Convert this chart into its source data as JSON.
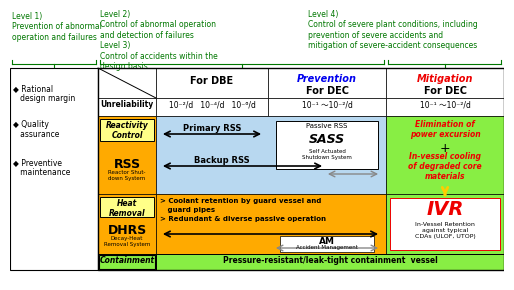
{
  "level1_text": "Level 1)\nPrevention of abnormal\noperation and failures",
  "level23_text": "Level 2)\nControl of abnormal operation\nand detection of failures\nLevel 3)\nControl of accidents within the\ndesign basis",
  "level4_text": "Level 4)\nControl of severe plant conditions, including\nprevention of severe accidents and\nmitigation of severe-accident consequences",
  "left_bullets": [
    "◆ Rational\n   design margin",
    "◆ Quality\n   assurance",
    "◆ Preventive\n   maintenance"
  ],
  "col_dbe": "For DBE",
  "col_prev_1": "Prevention",
  "col_prev_2": "For DEC",
  "col_mit_1": "Mitigation",
  "col_mit_2": "For DEC",
  "row_unreliability": "Unreliability",
  "val_dbe": "10⁻²/d   10⁻⁴/d   10⁻⁶/d",
  "val_prev": "10⁻¹ ～10⁻²/d",
  "val_mit": "10⁻¹ ～10⁻²/d",
  "reactivity_control": "Reactivity\nControl",
  "rss_label": "RSS",
  "rss_sub": "Reactor Shut-\ndown System",
  "primary_rss": "Primary RSS",
  "backup_rss": "Backup RSS",
  "passive_rss": "Passive RSS",
  "sass_label": "SASS",
  "sass_sub": "Self Actuated\nShutdown System",
  "heat_removal": "Heat\nRemoval",
  "dhrs_label": "DHRS",
  "dhrs_sub": "Decay-Heat\nRemoval System",
  "coolant_line1": "> Coolant retention by guard vessel and",
  "coolant_line2": "   guard pipes",
  "coolant_line3": "> Redundant & diverse passive operation",
  "am_label": "AM",
  "am_sub": "Accident Management",
  "containment": "Containment",
  "containment_text": "Pressure-resistant/leak-tight containment  vessel",
  "elim_line1": "Elimination of",
  "elim_line2": "power excursion",
  "invessel_line1": "In-vessel cooling",
  "invessel_line2": "of degraded core",
  "invessel_line3": "materials",
  "ivr_label": "IVR",
  "ivr_sub": "In-Vessel Retention\nagainst typical\nCDAs (ULOF, UTOP)",
  "color_green_dark": "#007700",
  "color_green_bright": "#33CC00",
  "color_blue_light": "#B8D8F0",
  "color_yellow": "#FFFF88",
  "color_orange": "#FFAA00",
  "color_green_cell": "#88EE44",
  "color_white": "#FFFFFF",
  "color_black": "#000000",
  "color_red": "#EE0000",
  "color_blue_text": "#0000EE",
  "color_gray": "#888888"
}
